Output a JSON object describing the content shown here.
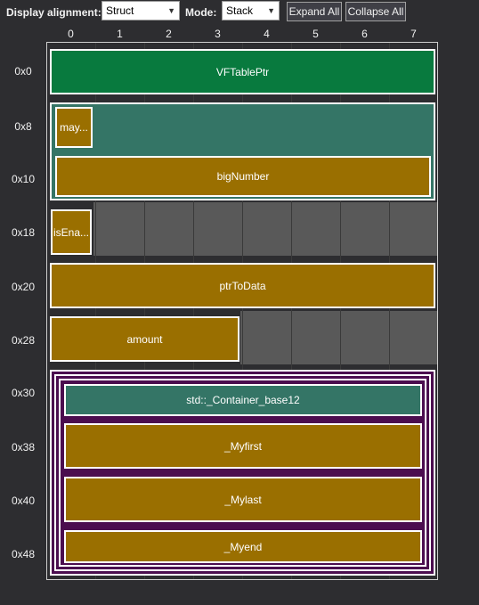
{
  "toolbar": {
    "alignment_label": "Display alignment:",
    "alignment_value": "Struct",
    "mode_label": "Mode:",
    "mode_value": "Stack",
    "expand_all": "Expand All",
    "collapse_all": "Collapse All"
  },
  "columns": [
    "0",
    "1",
    "2",
    "3",
    "4",
    "5",
    "6",
    "7"
  ],
  "rows": [
    "0x0",
    "0x8",
    "0x10",
    "0x18",
    "0x20",
    "0x28",
    "0x30",
    "0x38",
    "0x40",
    "0x48"
  ],
  "fields": {
    "vftable": "VFTablePtr",
    "may": "may...",
    "bignumber": "bigNumber",
    "isena": "isEna...",
    "ptrtodata": "ptrToData",
    "amount": "amount",
    "container_base": "std::_Container_base12",
    "myfirst": "_Myfirst",
    "mylast": "_Mylast",
    "myend": "_Myend"
  },
  "colors": {
    "gold": "#9a6f00",
    "green": "#087a3e",
    "teal": "#347566",
    "purple": "#4b0d4f",
    "empty": "#595959"
  }
}
